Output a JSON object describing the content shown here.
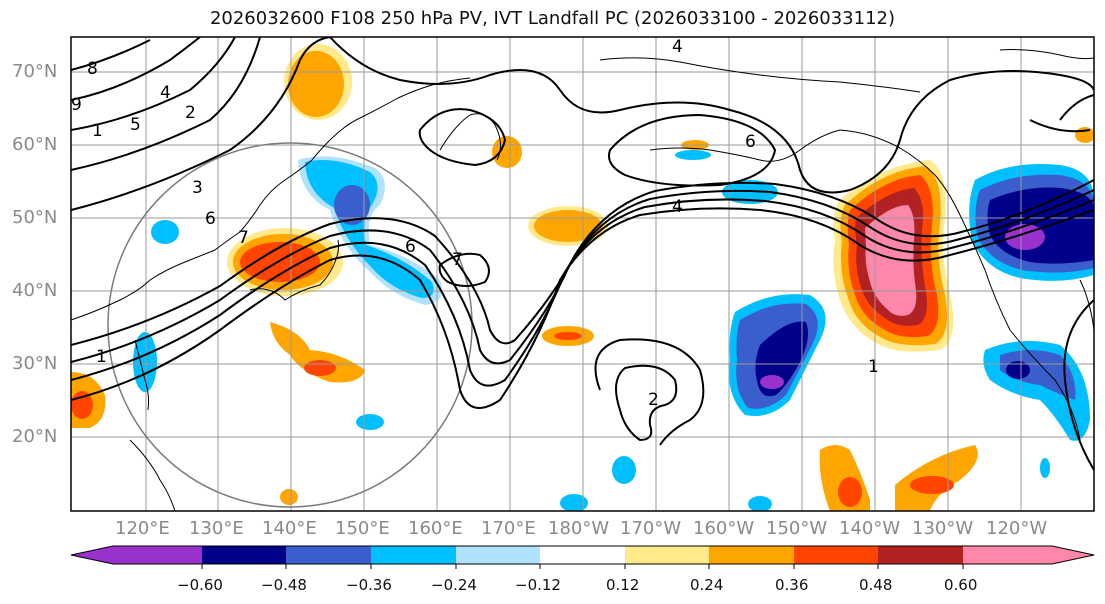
{
  "title": "2026032600 F108 250 hPa PV, IVT Landfall PC (2026033100 - 2026033112)",
  "lat_labels": [
    "70°N",
    "60°N",
    "50°N",
    "40°N",
    "30°N",
    "20°N"
  ],
  "lon_labels": [
    "120°E",
    "130°E",
    "140°E",
    "150°E",
    "160°E",
    "170°E",
    "180°W",
    "170°W",
    "160°W",
    "150°W",
    "140°W",
    "130°W",
    "120°W"
  ],
  "colorbar": {
    "ticks": [
      "−0.60",
      "−0.48",
      "−0.36",
      "−0.24",
      "−0.12",
      "0.12",
      "0.24",
      "0.36",
      "0.48",
      "0.60"
    ],
    "colors": [
      "#9932cc",
      "#00008b",
      "#3a5fcd",
      "#00bfff",
      "#b0e2ff",
      "#ffffff",
      "#ffe98a",
      "#ffa500",
      "#ff4500",
      "#b22222",
      "#ff88aa"
    ]
  },
  "contour_labels": [
    "4",
    "3",
    "2",
    "1",
    "6",
    "7",
    "4",
    "6",
    "7",
    "2",
    "1",
    "1",
    "6",
    "4",
    "5",
    "8",
    "9"
  ],
  "colors": {
    "pink": "#ff88aa",
    "red": "#b22222",
    "orangered": "#ff4500",
    "orange": "#ffa500",
    "yellow": "#ffe98a",
    "lightblue": "#b0e2ff",
    "cyan": "#00bfff",
    "blue": "#3a5fcd",
    "navy": "#00008b",
    "purple": "#9932cc"
  }
}
